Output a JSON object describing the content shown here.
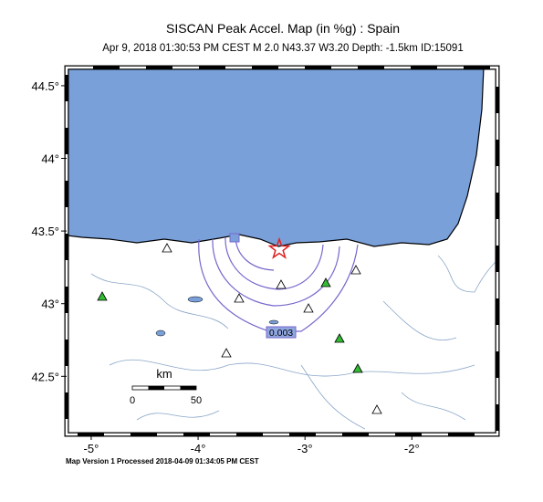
{
  "map": {
    "title": "SISCAN Peak Accel. Map (in %g) : Spain",
    "subtitle": "Apr  9, 2018 01:30:53 PM CEST   M 2.0   N43.37 W3.20   Depth: -1.5km   ID:15091",
    "xlim": [
      -5.23,
      -1.2
    ],
    "ylim": [
      42.1,
      44.625
    ],
    "xticks": [
      {
        "value": -5,
        "label": "-5°"
      },
      {
        "value": -4,
        "label": "-4°"
      },
      {
        "value": -3,
        "label": "-3°"
      },
      {
        "value": -2,
        "label": "-2°"
      }
    ],
    "yticks": [
      {
        "value": 42.5,
        "label": "42.5°"
      },
      {
        "value": 43,
        "label": "43°"
      },
      {
        "value": 43.5,
        "label": "43.5°"
      },
      {
        "value": 44,
        "label": "44°"
      },
      {
        "value": 44.5,
        "label": "44.5°"
      }
    ],
    "scale_bar": {
      "unit": "km",
      "start": "0",
      "end": "50"
    },
    "contour_label": "0.003",
    "footer": "Map Version 1 Processed 2018-04-09 01:34:05 PM CEST"
  }
}
